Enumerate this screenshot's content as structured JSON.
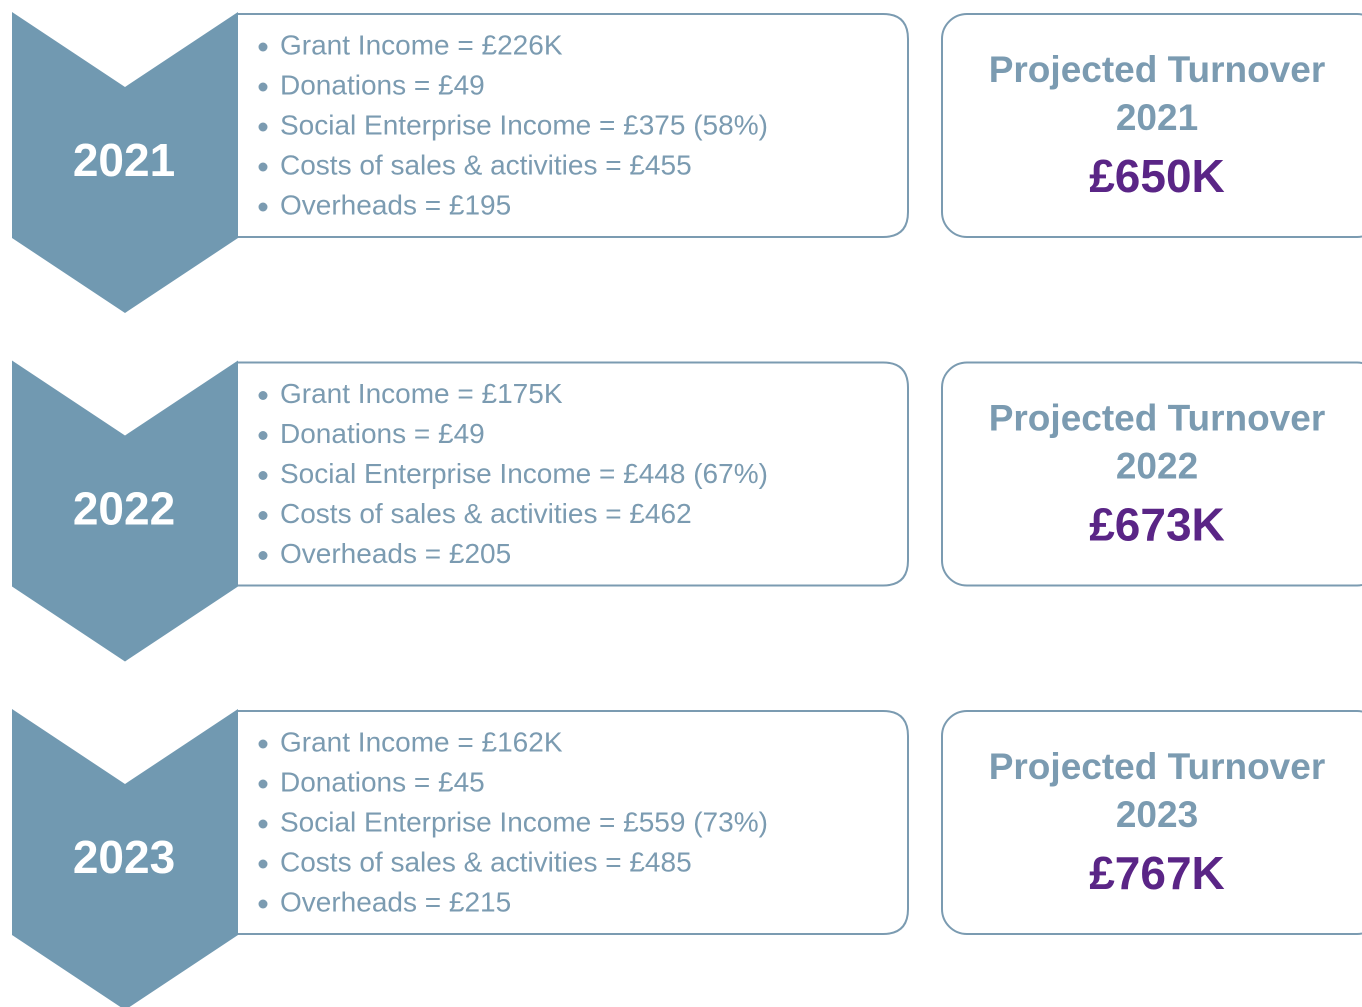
{
  "rows": [
    {
      "year": "2021",
      "items": [
        "Grant Income = £226K",
        "Donations = £49",
        "Social Enterprise Income = £375 (58%)",
        "Costs of sales & activities = £455",
        "Overheads = £195"
      ],
      "turnover_title": "Projected Turnover",
      "turnover_year": "2021",
      "turnover_amount": "£650K"
    },
    {
      "year": "2022",
      "items": [
        "Grant Income = £175K",
        "Donations = £49",
        "Social Enterprise Income = £448 (67%)",
        "Costs of sales & activities = £462",
        "Overheads = £205"
      ],
      "turnover_title": "Projected Turnover",
      "turnover_year": "2022",
      "turnover_amount": "£673K"
    },
    {
      "year": "2023",
      "items": [
        "Grant Income = £162K",
        "Donations = £45",
        "Social Enterprise Income = £559 (73%)",
        "Costs of sales & activities = £485",
        "Overheads = £215"
      ],
      "turnover_title": "Projected Turnover",
      "turnover_year": "2023",
      "turnover_amount": "£767K"
    }
  ]
}
